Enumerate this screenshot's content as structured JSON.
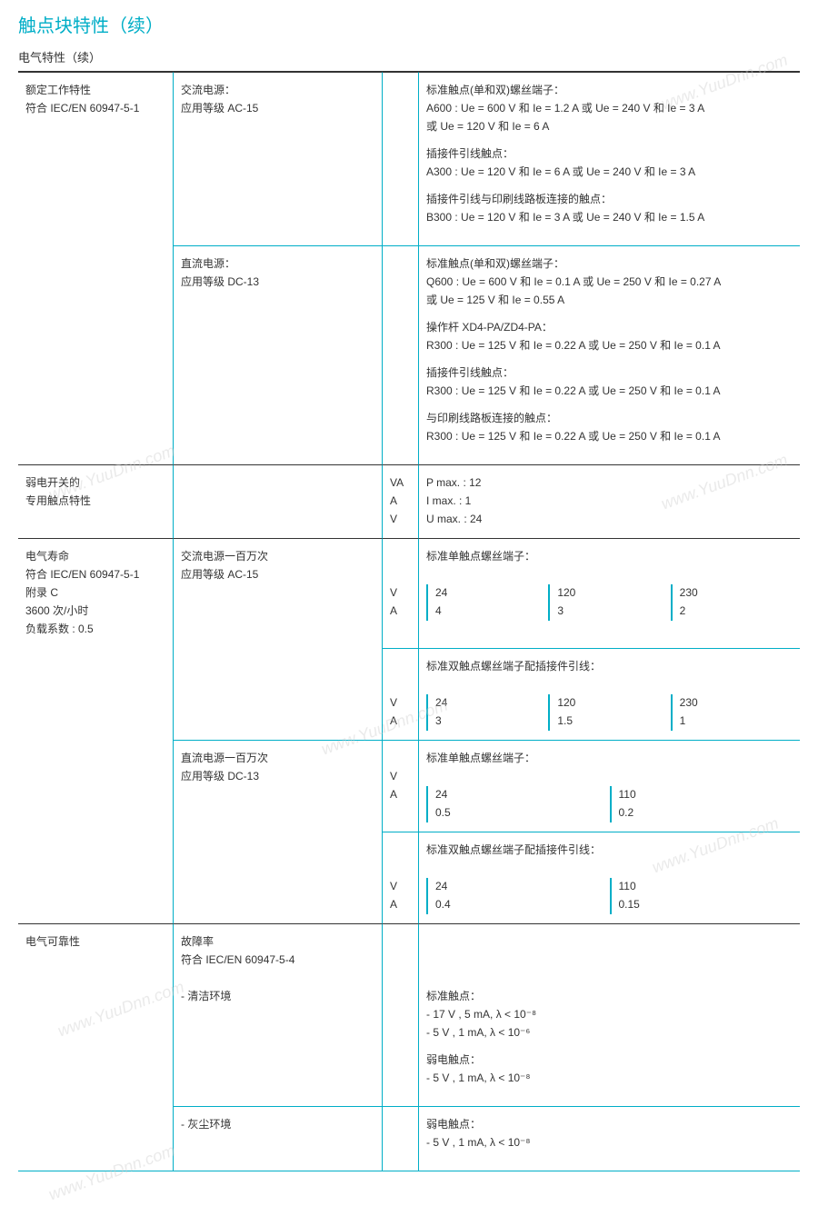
{
  "colors": {
    "accent": "#00aec7",
    "text": "#333333",
    "watermark": "#cccccc"
  },
  "title": "触点块特性（续）",
  "subtitle": "电气特性（续）",
  "watermark_text": "www.YuuDnn.com",
  "rows": [
    {
      "c1": "额定工作特性\n符合 IEC/EN 60947-5-1",
      "sub": [
        {
          "c2": "交流电源：\n应用等级 AC-15",
          "c3": "",
          "c4": [
            {
              "h": "标准触点(单和双)螺丝端子：",
              "lines": [
                "A600 : Ue = 600 V 和 Ie = 1.2 A 或 Ue = 240 V 和 Ie = 3 A",
                "或 Ue = 120 V 和 Ie = 6 A"
              ]
            },
            {
              "h": "插接件引线触点：",
              "lines": [
                "A300 : Ue = 120 V 和 Ie = 6 A 或 Ue = 240 V 和 Ie = 3 A"
              ]
            },
            {
              "h": "插接件引线与印刷线路板连接的触点：",
              "lines": [
                "B300 : Ue = 120 V 和 Ie = 3 A 或 Ue = 240 V 和 Ie = 1.5 A"
              ]
            }
          ]
        },
        {
          "c2": "直流电源：\n应用等级 DC-13",
          "c3": "",
          "c4": [
            {
              "h": "标准触点(单和双)螺丝端子：",
              "lines": [
                "Q600 : Ue = 600 V 和 Ie = 0.1 A 或 Ue = 250 V 和 Ie = 0.27 A",
                "或 Ue = 125 V 和 Ie = 0.55 A"
              ]
            },
            {
              "h": "操作杆 XD4-PA/ZD4-PA：",
              "lines": [
                "R300 : Ue = 125 V 和 Ie = 0.22 A 或 Ue = 250 V 和 Ie = 0.1 A"
              ]
            },
            {
              "h": "插接件引线触点：",
              "lines": [
                "R300 : Ue = 125 V 和 Ie = 0.22 A 或 Ue = 250 V 和 Ie = 0.1 A"
              ]
            },
            {
              "h": "与印刷线路板连接的触点：",
              "lines": [
                "R300 : Ue = 125 V 和 Ie = 0.22 A 或 Ue = 250 V 和 Ie = 0.1 A"
              ]
            }
          ]
        }
      ]
    },
    {
      "c1": "弱电开关的\n专用触点特性",
      "sub": [
        {
          "c2": "",
          "c3": "VA\nA\nV",
          "c4plain": [
            "P max. : 12",
            "I max. : 1",
            "U max. : 24"
          ]
        }
      ]
    },
    {
      "c1": "电气寿命\n符合 IEC/EN 60947-5-1\n附录 C\n3600 次/小时\n负载系数 : 0.5",
      "sub": [
        {
          "c2": "交流电源一百万次\n应用等级 AC-15",
          "c3": "\n\nV\nA",
          "table": {
            "h": "标准单触点螺丝端子：",
            "cols": [
              [
                "24",
                "4"
              ],
              [
                "120",
                "3"
              ],
              [
                "230",
                "2"
              ]
            ]
          }
        },
        {
          "c2": "",
          "c3": "\n\nV\nA",
          "table": {
            "h": "标准双触点螺丝端子配插接件引线：",
            "cols": [
              [
                "24",
                "3"
              ],
              [
                "120",
                "1.5"
              ],
              [
                "230",
                "1"
              ]
            ]
          },
          "nob2": true
        },
        {
          "c2": "直流电源一百万次\n应用等级 DC-13",
          "c3": "\nV\nA",
          "table": {
            "h": "标准单触点螺丝端子：",
            "cols": [
              [
                "24",
                "0.5"
              ],
              [
                "110",
                "0.2"
              ]
            ]
          }
        },
        {
          "c2": "",
          "c3": "\n\nV\nA",
          "table": {
            "h": "标准双触点螺丝端子配插接件引线：",
            "cols": [
              [
                "24",
                "0.4"
              ],
              [
                "110",
                "0.15"
              ]
            ]
          },
          "nob2": true
        }
      ]
    },
    {
      "c1": "电气可靠性",
      "sub": [
        {
          "c2": "故障率\n符合 IEC/EN 60947-5-4\n\n- 清洁环境",
          "c3": "",
          "c4": [
            {
              "h": "标准触点：",
              "lines": [
                "- 17 V , 5 mA, λ < 10⁻⁸",
                "- 5 V , 1 mA, λ < 10⁻⁶"
              ]
            },
            {
              "h": "弱电触点：",
              "lines": [
                "- 5 V , 1 mA, λ < 10⁻⁸"
              ]
            }
          ],
          "pretext": true
        },
        {
          "c2": "- 灰尘环境",
          "c3": "",
          "c4": [
            {
              "h": "弱电触点：",
              "lines": [
                "- 5 V , 1 mA, λ < 10⁻⁸"
              ]
            }
          ]
        }
      ]
    }
  ]
}
